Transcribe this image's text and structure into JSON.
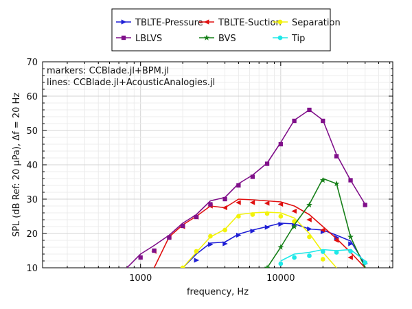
{
  "chart_data": {
    "type": "line",
    "x_scale": "log",
    "xlabel": "frequency, Hz",
    "ylabel": "SPL (dB Ref: 20 μPa), Δf = 20 Hz",
    "xlim": [
      200,
      63000
    ],
    "ylim": [
      10,
      70
    ],
    "x_ticks": [
      1000,
      10000
    ],
    "x_tick_labels": [
      "1000",
      "10000"
    ],
    "y_ticks": [
      10,
      20,
      30,
      40,
      50,
      60,
      70
    ],
    "y_tick_labels": [
      "10",
      "20",
      "30",
      "40",
      "50",
      "60",
      "70"
    ],
    "grid": true,
    "legend_position": "top",
    "annotations": [
      "markers: CCBlade.jl+BPM.jl",
      "lines: CCBlade.jl+AcousticAnalogies.jl"
    ],
    "frequencies": [
      200,
      250,
      315,
      400,
      500,
      630,
      800,
      1000,
      1250,
      1600,
      2000,
      2500,
      3150,
      4000,
      5000,
      6300,
      8000,
      10000,
      12500,
      16000,
      20000,
      25000,
      31500,
      40000
    ],
    "series": [
      {
        "name": "TBLTE-Pressure",
        "color": "#1f1fd6",
        "marker": "triangle-right",
        "marker_values": [
          null,
          null,
          null,
          null,
          null,
          null,
          null,
          null,
          null,
          null,
          null,
          12.2,
          16.8,
          17.0,
          19.5,
          20.7,
          21.8,
          22.7,
          22.2,
          21.3,
          20.5,
          18.8,
          17.0,
          11.2
        ],
        "line_values": [
          null,
          null,
          null,
          null,
          null,
          null,
          null,
          null,
          null,
          null,
          10.0,
          14.0,
          17.2,
          17.5,
          19.8,
          21.0,
          22.0,
          23.0,
          22.8,
          21.3,
          21.0,
          19.5,
          17.8,
          11.0
        ]
      },
      {
        "name": "TBLTE-Suction",
        "color": "#e01010",
        "marker": "triangle-left",
        "marker_values": [
          null,
          null,
          null,
          null,
          null,
          null,
          null,
          null,
          14.8,
          19.0,
          22.0,
          24.8,
          28.0,
          27.5,
          29.0,
          29.0,
          28.8,
          28.5,
          26.5,
          24.0,
          21.0,
          18.0,
          13.0,
          null
        ],
        "line_values": [
          null,
          null,
          null,
          null,
          null,
          null,
          null,
          null,
          10.0,
          19.0,
          22.5,
          25.0,
          28.0,
          27.5,
          30.0,
          29.8,
          29.5,
          29.2,
          28.0,
          25.5,
          22.0,
          18.5,
          14.5,
          10.0
        ]
      },
      {
        "name": "Separation",
        "color": "#f2f20a",
        "marker": "circle",
        "marker_values": [
          null,
          null,
          null,
          null,
          null,
          null,
          null,
          null,
          null,
          null,
          10.0,
          14.8,
          19.2,
          21.0,
          25.0,
          25.5,
          25.8,
          25.0,
          23.5,
          19.0,
          12.5,
          null,
          null,
          null
        ],
        "line_values": [
          null,
          null,
          null,
          null,
          null,
          null,
          null,
          null,
          null,
          null,
          10.0,
          14.5,
          19.0,
          21.2,
          25.5,
          26.0,
          26.2,
          26.0,
          24.5,
          20.0,
          14.5,
          10.0,
          null,
          null
        ]
      },
      {
        "name": "LBLVS",
        "color": "#80108a",
        "marker": "square",
        "marker_values": [
          null,
          null,
          null,
          null,
          null,
          null,
          null,
          13.0,
          15.0,
          18.8,
          22.2,
          24.8,
          28.5,
          30.0,
          34.0,
          36.5,
          40.3,
          46.0,
          52.8,
          56.0,
          52.8,
          42.5,
          35.5,
          28.3
        ],
        "line_values": [
          null,
          null,
          null,
          null,
          null,
          null,
          10.0,
          14.0,
          16.5,
          19.5,
          23.0,
          25.5,
          29.5,
          30.5,
          34.5,
          37.0,
          40.5,
          46.5,
          53.0,
          56.0,
          53.0,
          43.0,
          35.5,
          28.5
        ]
      },
      {
        "name": "BVS",
        "color": "#17801a",
        "marker": "star",
        "marker_values": [
          null,
          null,
          null,
          null,
          null,
          null,
          null,
          null,
          null,
          null,
          null,
          null,
          null,
          null,
          null,
          null,
          10.0,
          16.0,
          22.0,
          28.3,
          35.5,
          34.5,
          19.0,
          null
        ],
        "line_values": [
          null,
          null,
          null,
          null,
          null,
          null,
          null,
          null,
          null,
          null,
          null,
          null,
          null,
          null,
          null,
          null,
          10.0,
          16.0,
          22.5,
          28.5,
          36.0,
          34.5,
          19.0,
          10.0
        ]
      },
      {
        "name": "Tip",
        "color": "#1fe8e8",
        "marker": "circle",
        "marker_values": [
          null,
          null,
          null,
          null,
          null,
          null,
          null,
          null,
          null,
          null,
          null,
          null,
          null,
          null,
          null,
          null,
          null,
          11.2,
          13.0,
          13.5,
          14.7,
          14.5,
          14.8,
          11.5
        ],
        "line_values": [
          null,
          null,
          null,
          null,
          null,
          null,
          null,
          null,
          null,
          null,
          null,
          null,
          null,
          null,
          null,
          null,
          null,
          12.0,
          14.0,
          14.5,
          15.3,
          15.0,
          15.3,
          12.0
        ]
      }
    ]
  }
}
